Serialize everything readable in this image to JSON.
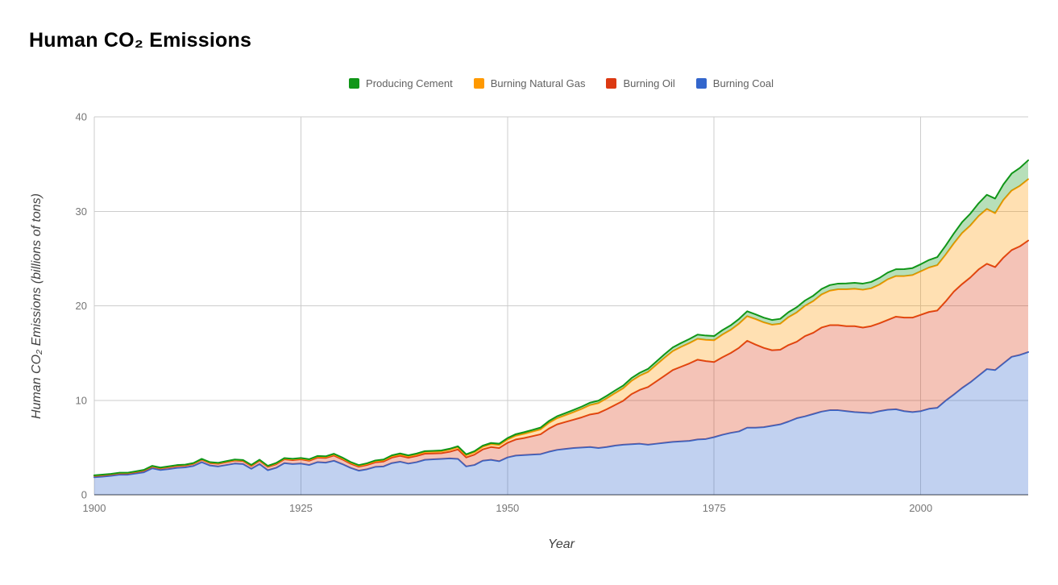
{
  "title": {
    "text": "Human CO₂ Emissions"
  },
  "legend": {
    "items": [
      {
        "label": "Producing Cement",
        "color": "#109618"
      },
      {
        "label": "Burning Natural Gas",
        "color": "#FF9900"
      },
      {
        "label": "Burning Oil",
        "color": "#DC3912"
      },
      {
        "label": "Burning Coal",
        "color": "#3366CC"
      }
    ]
  },
  "axes": {
    "y_title": "Human CO₂ Emissions (billions of tons)",
    "x_title": "Year"
  },
  "colors": {
    "gridline": "#cccccc",
    "baseline": "#333333",
    "tick_text": "#757575",
    "fill_opacity": 0.3
  },
  "chart_data": {
    "type": "area",
    "stacked": true,
    "title": "Human CO₂ Emissions",
    "xlabel": "Year",
    "ylabel": "Human CO₂ Emissions (billions of tons)",
    "x_start": 1900,
    "x_end": 2013,
    "x_step": 1,
    "x_ticks": [
      1900,
      1925,
      1950,
      1975,
      2000
    ],
    "y_ticks": [
      0,
      10,
      20,
      30,
      40
    ],
    "ylim": [
      0,
      40
    ],
    "grid": true,
    "legend_position": "top",
    "units": "billions of tons CO2 per year",
    "series": [
      {
        "name": "Burning Coal",
        "color": "#3366CC",
        "values": [
          1.85,
          1.92,
          2.0,
          2.12,
          2.12,
          2.25,
          2.38,
          2.8,
          2.62,
          2.72,
          2.85,
          2.9,
          3.05,
          3.45,
          3.1,
          3.0,
          3.15,
          3.3,
          3.25,
          2.75,
          3.25,
          2.6,
          2.85,
          3.35,
          3.25,
          3.3,
          3.15,
          3.45,
          3.4,
          3.6,
          3.25,
          2.85,
          2.55,
          2.7,
          2.95,
          3.0,
          3.35,
          3.5,
          3.3,
          3.45,
          3.7,
          3.75,
          3.8,
          3.85,
          3.8,
          3.0,
          3.15,
          3.6,
          3.7,
          3.55,
          3.95,
          4.15,
          4.2,
          4.25,
          4.3,
          4.55,
          4.75,
          4.85,
          4.95,
          5.0,
          5.05,
          4.95,
          5.05,
          5.2,
          5.3,
          5.35,
          5.4,
          5.3,
          5.4,
          5.5,
          5.6,
          5.65,
          5.7,
          5.85,
          5.9,
          6.1,
          6.35,
          6.55,
          6.7,
          7.1,
          7.1,
          7.15,
          7.3,
          7.45,
          7.75,
          8.1,
          8.3,
          8.55,
          8.8,
          8.95,
          8.95,
          8.85,
          8.75,
          8.7,
          8.65,
          8.85,
          9.0,
          9.05,
          8.85,
          8.75,
          8.85,
          9.1,
          9.2,
          9.95,
          10.6,
          11.3,
          11.9,
          12.6,
          13.3,
          13.2,
          13.9,
          14.6,
          14.8,
          15.1
        ]
      },
      {
        "name": "Burning Oil",
        "color": "#DC3912",
        "values": [
          0.15,
          0.15,
          0.15,
          0.15,
          0.15,
          0.15,
          0.18,
          0.18,
          0.18,
          0.2,
          0.2,
          0.2,
          0.22,
          0.25,
          0.25,
          0.28,
          0.3,
          0.32,
          0.32,
          0.3,
          0.35,
          0.35,
          0.38,
          0.4,
          0.42,
          0.45,
          0.45,
          0.48,
          0.5,
          0.55,
          0.5,
          0.45,
          0.42,
          0.45,
          0.48,
          0.52,
          0.58,
          0.62,
          0.62,
          0.65,
          0.65,
          0.62,
          0.6,
          0.7,
          1.0,
          0.95,
          1.1,
          1.2,
          1.35,
          1.4,
          1.55,
          1.7,
          1.8,
          1.95,
          2.1,
          2.45,
          2.7,
          2.85,
          3.0,
          3.2,
          3.45,
          3.7,
          4.0,
          4.3,
          4.65,
          5.3,
          5.7,
          6.1,
          6.6,
          7.1,
          7.6,
          7.9,
          8.2,
          8.45,
          8.25,
          7.95,
          8.2,
          8.45,
          8.85,
          9.2,
          8.8,
          8.4,
          8.0,
          7.9,
          8.1,
          8.1,
          8.5,
          8.6,
          8.9,
          9.0,
          9.0,
          9.0,
          9.1,
          9.0,
          9.2,
          9.3,
          9.5,
          9.8,
          9.9,
          10.0,
          10.2,
          10.25,
          10.3,
          10.5,
          10.9,
          11.0,
          11.1,
          11.25,
          11.15,
          10.9,
          11.2,
          11.3,
          11.5,
          11.8
        ]
      },
      {
        "name": "Burning Natural Gas",
        "color": "#FF9900",
        "values": [
          0.03,
          0.03,
          0.03,
          0.03,
          0.03,
          0.04,
          0.04,
          0.04,
          0.04,
          0.05,
          0.05,
          0.05,
          0.05,
          0.05,
          0.05,
          0.05,
          0.06,
          0.06,
          0.06,
          0.06,
          0.06,
          0.06,
          0.07,
          0.07,
          0.08,
          0.08,
          0.09,
          0.1,
          0.1,
          0.11,
          0.11,
          0.1,
          0.1,
          0.11,
          0.12,
          0.13,
          0.15,
          0.16,
          0.16,
          0.17,
          0.18,
          0.19,
          0.2,
          0.22,
          0.23,
          0.23,
          0.25,
          0.28,
          0.3,
          0.32,
          0.35,
          0.4,
          0.45,
          0.48,
          0.52,
          0.6,
          0.65,
          0.72,
          0.8,
          0.9,
          1.0,
          1.05,
          1.15,
          1.25,
          1.32,
          1.4,
          1.5,
          1.6,
          1.75,
          1.9,
          2.0,
          2.1,
          2.15,
          2.2,
          2.25,
          2.3,
          2.4,
          2.45,
          2.55,
          2.6,
          2.7,
          2.7,
          2.7,
          2.75,
          2.95,
          3.1,
          3.2,
          3.35,
          3.5,
          3.65,
          3.8,
          3.9,
          3.95,
          4.0,
          4.0,
          4.1,
          4.3,
          4.3,
          4.4,
          4.5,
          4.6,
          4.7,
          4.8,
          4.95,
          5.1,
          5.4,
          5.5,
          5.65,
          5.8,
          5.7,
          6.1,
          6.3,
          6.4,
          6.5
        ]
      },
      {
        "name": "Producing Cement",
        "color": "#109618",
        "values": [
          0.03,
          0.03,
          0.03,
          0.03,
          0.03,
          0.03,
          0.03,
          0.04,
          0.04,
          0.04,
          0.04,
          0.04,
          0.04,
          0.05,
          0.05,
          0.05,
          0.05,
          0.05,
          0.05,
          0.05,
          0.05,
          0.05,
          0.06,
          0.06,
          0.06,
          0.06,
          0.07,
          0.07,
          0.07,
          0.08,
          0.08,
          0.07,
          0.07,
          0.07,
          0.08,
          0.08,
          0.09,
          0.09,
          0.09,
          0.09,
          0.09,
          0.09,
          0.09,
          0.1,
          0.1,
          0.1,
          0.11,
          0.12,
          0.13,
          0.14,
          0.15,
          0.16,
          0.17,
          0.18,
          0.19,
          0.2,
          0.21,
          0.22,
          0.23,
          0.24,
          0.25,
          0.26,
          0.27,
          0.28,
          0.29,
          0.3,
          0.31,
          0.32,
          0.34,
          0.37,
          0.4,
          0.41,
          0.43,
          0.45,
          0.45,
          0.45,
          0.47,
          0.48,
          0.5,
          0.52,
          0.5,
          0.5,
          0.5,
          0.52,
          0.53,
          0.55,
          0.56,
          0.57,
          0.58,
          0.59,
          0.6,
          0.62,
          0.63,
          0.65,
          0.67,
          0.7,
          0.71,
          0.72,
          0.73,
          0.74,
          0.75,
          0.8,
          0.85,
          0.95,
          1.05,
          1.15,
          1.25,
          1.35,
          1.5,
          1.55,
          1.65,
          1.8,
          1.9,
          2.0
        ]
      }
    ]
  }
}
